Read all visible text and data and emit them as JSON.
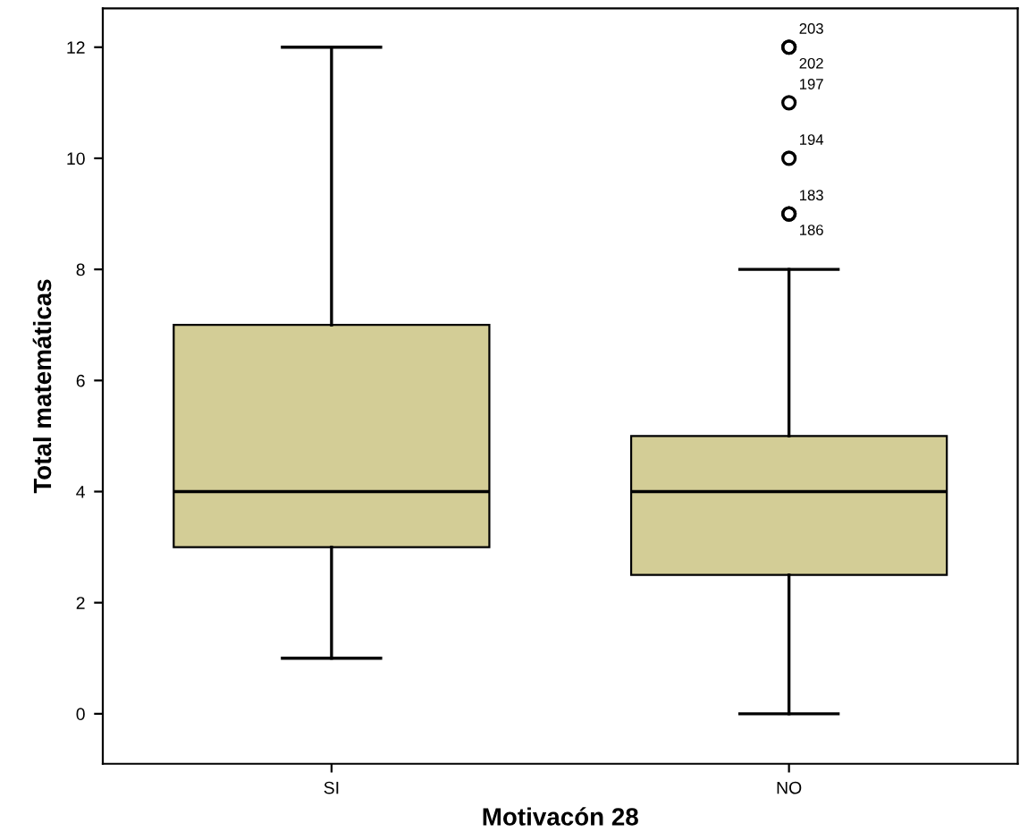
{
  "chart_data": {
    "type": "box",
    "xlabel": "Motivacón 28",
    "ylabel": "Total matemáticas",
    "categories": [
      "SI",
      "NO"
    ],
    "boxes": [
      {
        "low": 1,
        "q1": 3,
        "median": 4,
        "q3": 7,
        "high": 12
      },
      {
        "low": 0,
        "q1": 2.5,
        "median": 4,
        "q3": 5,
        "high": 8,
        "outliers": [
          9,
          9,
          10,
          11,
          12,
          12
        ]
      }
    ],
    "color": "#d3cd96",
    "ylim": [
      -0.9,
      12.7
    ],
    "yticks": [
      0,
      2,
      4,
      6,
      8,
      10,
      12
    ],
    "grid": false,
    "marker": "circle",
    "annotations": [
      "203",
      "202",
      "197",
      "194",
      "183",
      "186"
    ]
  }
}
